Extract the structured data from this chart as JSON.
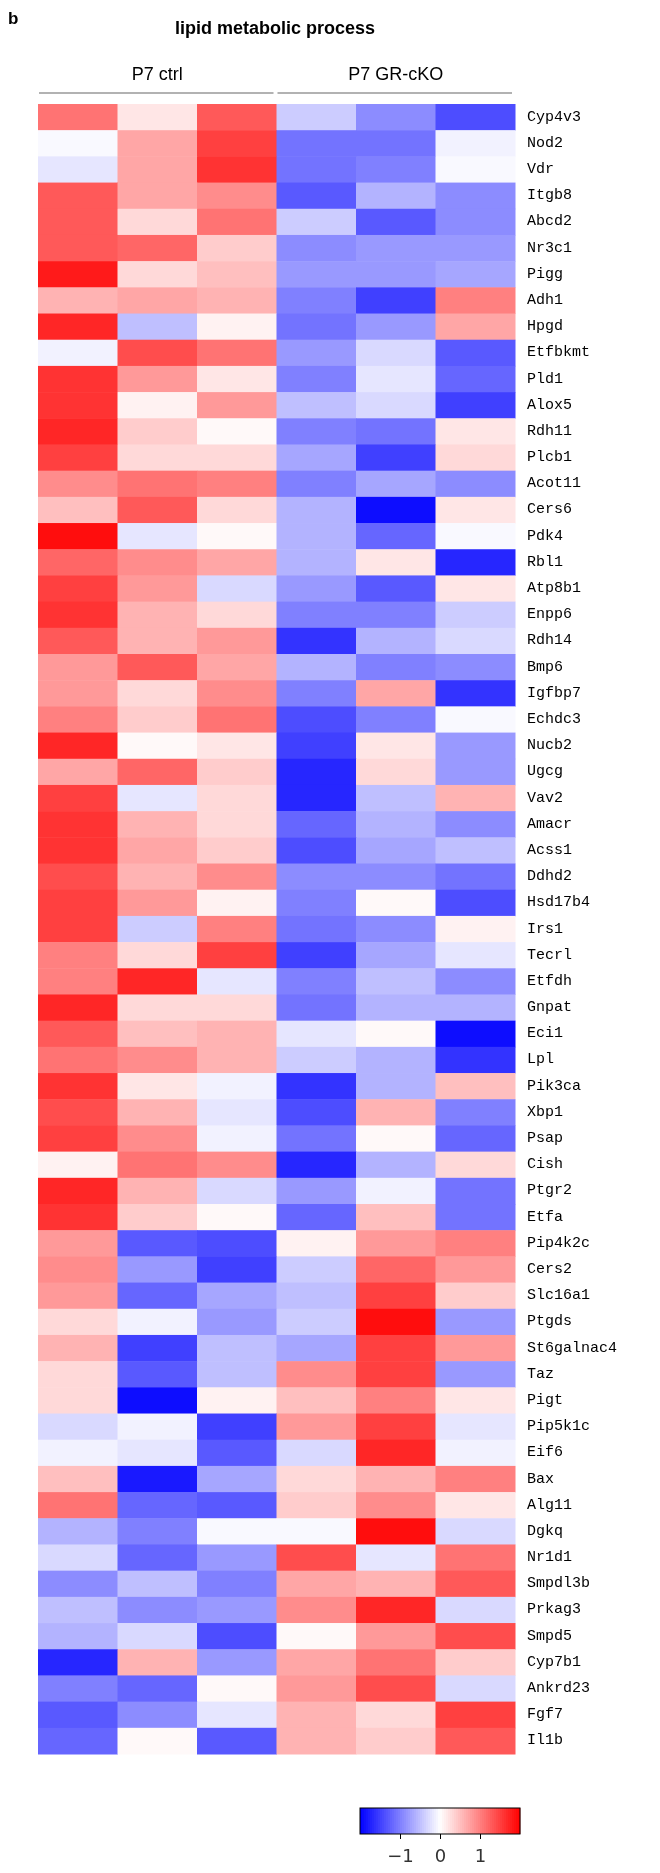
{
  "chart_data": {
    "type": "heatmap",
    "title": "lipid metabolic process",
    "annotations": [
      "b",
      "P7 ctrl",
      "P7 GR-cKO"
    ],
    "categories": [
      null,
      null,
      null,
      null,
      null,
      null
    ],
    "y_categories": [
      "Cyp4v3",
      "Nod2",
      "Vdr",
      "Itgb8",
      "Abcd2",
      "Nr3c1",
      "Pigg",
      "Adh1",
      "Hpgd",
      "Etfbkmt",
      "Pld1",
      "Alox5",
      "Rdh11",
      "Plcb1",
      "Acot11",
      "Cers6",
      "Pdk4",
      "Rbl1",
      "Atp8b1",
      "Enpp6",
      "Rdh14",
      "Bmp6",
      "Igfbp7",
      "Echdc3",
      "Nucb2",
      "Ugcg",
      "Vav2",
      "Amacr",
      "Acss1",
      "Ddhd2",
      "Hsd17b4",
      "Irs1",
      "Tecrl",
      "Etfdh",
      "Gnpat",
      "Eci1",
      "Lpl",
      "Pik3ca",
      "Xbp1",
      "Psap",
      "Cish",
      "Ptgr2",
      "Etfa",
      "Pip4k2c",
      "Cers2",
      "Slc16a1",
      "Ptgds",
      "St6galnac4",
      "Taz",
      "Pigt",
      "Pip5k1c",
      "Eif6",
      "Bax",
      "Alg11",
      "Dgkq",
      "Nr1d1",
      "Smpdl3b",
      "Prkag3",
      "Smpd5",
      "Cyp7b1",
      "Ankrd23",
      "Fgf7",
      "Il1b"
    ],
    "cells": [
      [
        1.1,
        0.2,
        1.3,
        -0.4,
        -0.9,
        -1.4
      ],
      [
        -0.05,
        0.7,
        1.5,
        -1.1,
        -1.1,
        -0.1
      ],
      [
        -0.2,
        0.7,
        1.6,
        -1.1,
        -1.0,
        -0.05
      ],
      [
        1.3,
        0.7,
        0.9,
        -1.3,
        -0.6,
        -0.9
      ],
      [
        1.3,
        0.3,
        1.1,
        -0.4,
        -1.3,
        -0.9
      ],
      [
        1.3,
        1.2,
        0.4,
        -0.9,
        -0.8,
        -0.8
      ],
      [
        1.8,
        0.3,
        0.5,
        -0.8,
        -0.8,
        -0.7
      ],
      [
        0.6,
        0.7,
        0.6,
        -1.0,
        -1.5,
        1.0
      ],
      [
        1.7,
        -0.5,
        0.1,
        -1.1,
        -0.8,
        0.7
      ],
      [
        -0.1,
        1.4,
        1.1,
        -0.8,
        -0.3,
        -1.3
      ],
      [
        1.6,
        0.8,
        0.2,
        -1.0,
        -0.2,
        -1.2
      ],
      [
        1.6,
        0.1,
        0.8,
        -0.5,
        -0.3,
        -1.5
      ],
      [
        1.7,
        0.4,
        0.05,
        -1.0,
        -1.1,
        0.2
      ],
      [
        1.5,
        0.3,
        0.3,
        -0.7,
        -1.5,
        0.3
      ],
      [
        0.9,
        1.1,
        1.0,
        -1.0,
        -0.7,
        -0.9
      ],
      [
        0.5,
        1.3,
        0.3,
        -0.6,
        -1.9,
        0.2
      ],
      [
        1.9,
        -0.2,
        0.05,
        -0.6,
        -1.2,
        -0.05
      ],
      [
        1.2,
        0.9,
        0.7,
        -0.6,
        0.2,
        -1.7
      ],
      [
        1.5,
        0.8,
        -0.3,
        -0.8,
        -1.3,
        0.2
      ],
      [
        1.6,
        0.6,
        0.3,
        -1.0,
        -1.0,
        -0.4
      ],
      [
        1.3,
        0.6,
        0.8,
        -1.6,
        -0.6,
        -0.3
      ],
      [
        0.8,
        1.3,
        0.7,
        -0.6,
        -1.0,
        -0.9
      ],
      [
        0.8,
        0.3,
        0.9,
        -1.0,
        0.7,
        -1.6
      ],
      [
        1.0,
        0.4,
        1.1,
        -1.4,
        -1.0,
        -0.05
      ],
      [
        1.7,
        0.05,
        0.2,
        -1.5,
        0.2,
        -0.8
      ],
      [
        0.7,
        1.2,
        0.4,
        -1.7,
        0.3,
        -0.8
      ],
      [
        1.5,
        -0.2,
        0.3,
        -1.7,
        -0.5,
        0.6
      ],
      [
        1.6,
        0.6,
        0.3,
        -1.2,
        -0.6,
        -0.9
      ],
      [
        1.6,
        0.7,
        0.4,
        -1.4,
        -0.7,
        -0.5
      ],
      [
        1.4,
        0.6,
        0.9,
        -0.9,
        -0.9,
        -1.1
      ],
      [
        1.5,
        0.8,
        0.1,
        -1.0,
        0.05,
        -1.4
      ],
      [
        1.5,
        -0.4,
        1.0,
        -1.1,
        -0.9,
        0.1
      ],
      [
        1.0,
        0.3,
        1.5,
        -1.5,
        -0.7,
        -0.2
      ],
      [
        1.0,
        1.7,
        -0.2,
        -1.0,
        -0.5,
        -0.9
      ],
      [
        1.7,
        0.3,
        0.3,
        -1.1,
        -0.6,
        -0.6
      ],
      [
        1.3,
        0.5,
        0.6,
        -0.2,
        0.05,
        -1.9
      ],
      [
        1.1,
        0.9,
        0.6,
        -0.4,
        -0.6,
        -1.6
      ],
      [
        1.6,
        0.2,
        -0.1,
        -1.6,
        -0.6,
        0.5
      ],
      [
        1.4,
        0.6,
        -0.2,
        -1.4,
        0.6,
        -1.0
      ],
      [
        1.5,
        0.9,
        -0.1,
        -1.1,
        0.05,
        -1.2
      ],
      [
        0.1,
        1.1,
        0.9,
        -1.7,
        -0.6,
        0.3
      ],
      [
        1.7,
        0.6,
        -0.3,
        -0.8,
        -0.1,
        -1.1
      ],
      [
        1.6,
        0.4,
        0.05,
        -1.2,
        0.5,
        -1.1
      ],
      [
        0.8,
        -1.3,
        -1.4,
        0.1,
        0.8,
        1.0
      ],
      [
        0.9,
        -0.8,
        -1.5,
        -0.4,
        1.2,
        0.8
      ],
      [
        0.8,
        -1.2,
        -0.7,
        -0.5,
        1.5,
        0.4
      ],
      [
        0.3,
        -0.1,
        -0.8,
        -0.4,
        1.9,
        -0.8
      ],
      [
        0.6,
        -1.5,
        -0.5,
        -0.7,
        1.5,
        0.8
      ],
      [
        0.3,
        -1.3,
        -0.5,
        0.9,
        1.5,
        -0.8
      ],
      [
        0.3,
        -1.9,
        0.1,
        0.5,
        1.0,
        0.2
      ],
      [
        -0.3,
        -0.1,
        -1.5,
        0.8,
        1.5,
        -0.2
      ],
      [
        -0.1,
        -0.2,
        -1.3,
        -0.3,
        1.7,
        -0.1
      ],
      [
        0.5,
        -1.8,
        -0.7,
        0.3,
        0.6,
        1.0
      ],
      [
        1.1,
        -1.2,
        -1.3,
        0.4,
        0.9,
        0.2
      ],
      [
        -0.6,
        -1.0,
        -0.05,
        -0.05,
        1.9,
        -0.3
      ],
      [
        -0.3,
        -1.2,
        -0.8,
        1.4,
        -0.2,
        1.1
      ],
      [
        -0.9,
        -0.5,
        -1.0,
        0.7,
        0.6,
        1.3
      ],
      [
        -0.5,
        -0.9,
        -0.8,
        0.9,
        1.7,
        -0.3
      ],
      [
        -0.6,
        -0.3,
        -1.4,
        0.05,
        0.8,
        1.4
      ],
      [
        -1.7,
        0.6,
        -0.8,
        0.7,
        1.1,
        0.4
      ],
      [
        -1.0,
        -1.2,
        0.05,
        0.8,
        1.4,
        -0.3
      ],
      [
        -1.3,
        -0.9,
        -0.2,
        0.6,
        0.3,
        1.5
      ],
      [
        -1.2,
        0.05,
        -1.3,
        0.6,
        0.4,
        1.3
      ]
    ],
    "clim": [
      -2,
      2
    ],
    "cticks": [
      {
        "value": -1,
        "label": "−1"
      },
      0,
      1
    ]
  }
}
